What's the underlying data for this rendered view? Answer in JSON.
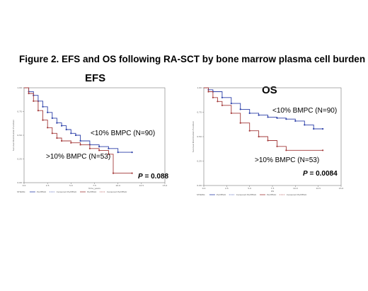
{
  "figure_title": "Figure 2.  EFS and OS following RA-SCT by bone marrow plasma cell burden",
  "colors": {
    "low": "#2b3fa8",
    "high": "#a33a3a",
    "frame": "#777777"
  },
  "panels": [
    {
      "title": "EFS",
      "label_low": "<10% BMPC (N=90)",
      "label_high": ">10% BMPC (N=53)",
      "p_prefix": "P",
      "p_text": " = 0.088",
      "xlabel": "time_years",
      "ylabel": "Survival Distribution Function",
      "legend": [
        "STRATA:",
        "PLATEAU",
        "Censored PLATEAU",
        "PLATEAU",
        "Censored PLATEAU"
      ]
    },
    {
      "title": "OS",
      "label_low": "<10% BMPC (N=90)",
      "label_high": ">10% BMPC (N=53)",
      "p_prefix": "P",
      "p_text": " = 0.0084",
      "xlabel": "OS",
      "ylabel": "Survival Distribution Function",
      "legend": [
        "STRATA:",
        "PLATEAU",
        "Censored PLATEAU",
        "PLATEAU",
        "Censored PLATEAU"
      ]
    }
  ],
  "chart_data": [
    {
      "type": "line",
      "title": "EFS",
      "x_ticks": [
        "0.0",
        "2.5",
        "5.0",
        "7.5",
        "10.0",
        "12.5",
        "15.0"
      ],
      "y_ticks": [
        "0.00",
        "0.25",
        "0.50",
        "0.75",
        "1.00"
      ],
      "xlim": [
        0,
        15
      ],
      "ylim": [
        0,
        1
      ],
      "series": [
        {
          "name": "<10% BMPC (N=90)",
          "x": [
            0,
            0.5,
            1.0,
            1.5,
            2.0,
            2.5,
            3.0,
            3.5,
            4.0,
            4.5,
            5.0,
            5.5,
            6.0,
            7.0,
            8.0,
            9.0,
            10.0,
            11.5
          ],
          "y": [
            1.0,
            0.96,
            0.92,
            0.86,
            0.8,
            0.74,
            0.68,
            0.63,
            0.6,
            0.56,
            0.52,
            0.5,
            0.44,
            0.4,
            0.38,
            0.36,
            0.32,
            0.32
          ]
        },
        {
          "name": ">10% BMPC (N=53)",
          "x": [
            0,
            0.5,
            1.0,
            1.5,
            2.0,
            2.5,
            3.0,
            3.5,
            4.0,
            5.0,
            6.0,
            7.0,
            8.0,
            9.0,
            9.5,
            11.5
          ],
          "y": [
            1.0,
            0.94,
            0.86,
            0.76,
            0.66,
            0.58,
            0.52,
            0.47,
            0.44,
            0.42,
            0.4,
            0.36,
            0.34,
            0.3,
            0.1,
            0.1
          ]
        }
      ]
    },
    {
      "type": "line",
      "title": "OS",
      "x_ticks": [
        "0.0",
        "2.5",
        "5.0",
        "7.5",
        "10.0",
        "12.5",
        "15.0"
      ],
      "y_ticks": [
        "0.00",
        "0.25",
        "0.50",
        "0.75",
        "1.00"
      ],
      "xlim": [
        0,
        15
      ],
      "ylim": [
        0,
        1
      ],
      "series": [
        {
          "name": "<10% BMPC (N=90)",
          "x": [
            0,
            0.5,
            1.0,
            2.0,
            3.0,
            4.0,
            5.0,
            6.0,
            7.0,
            8.0,
            9.0,
            10.0,
            11.0,
            12.0,
            13.0
          ],
          "y": [
            1.0,
            0.98,
            0.96,
            0.9,
            0.84,
            0.78,
            0.74,
            0.72,
            0.7,
            0.69,
            0.68,
            0.66,
            0.62,
            0.58,
            0.58
          ]
        },
        {
          "name": ">10% BMPC (N=53)",
          "x": [
            0,
            0.5,
            1.0,
            1.5,
            2.0,
            3.0,
            4.0,
            5.0,
            6.0,
            7.0,
            8.0,
            9.0,
            13.0
          ],
          "y": [
            1.0,
            0.96,
            0.9,
            0.86,
            0.82,
            0.74,
            0.64,
            0.56,
            0.5,
            0.46,
            0.4,
            0.36,
            0.36
          ]
        }
      ]
    }
  ]
}
